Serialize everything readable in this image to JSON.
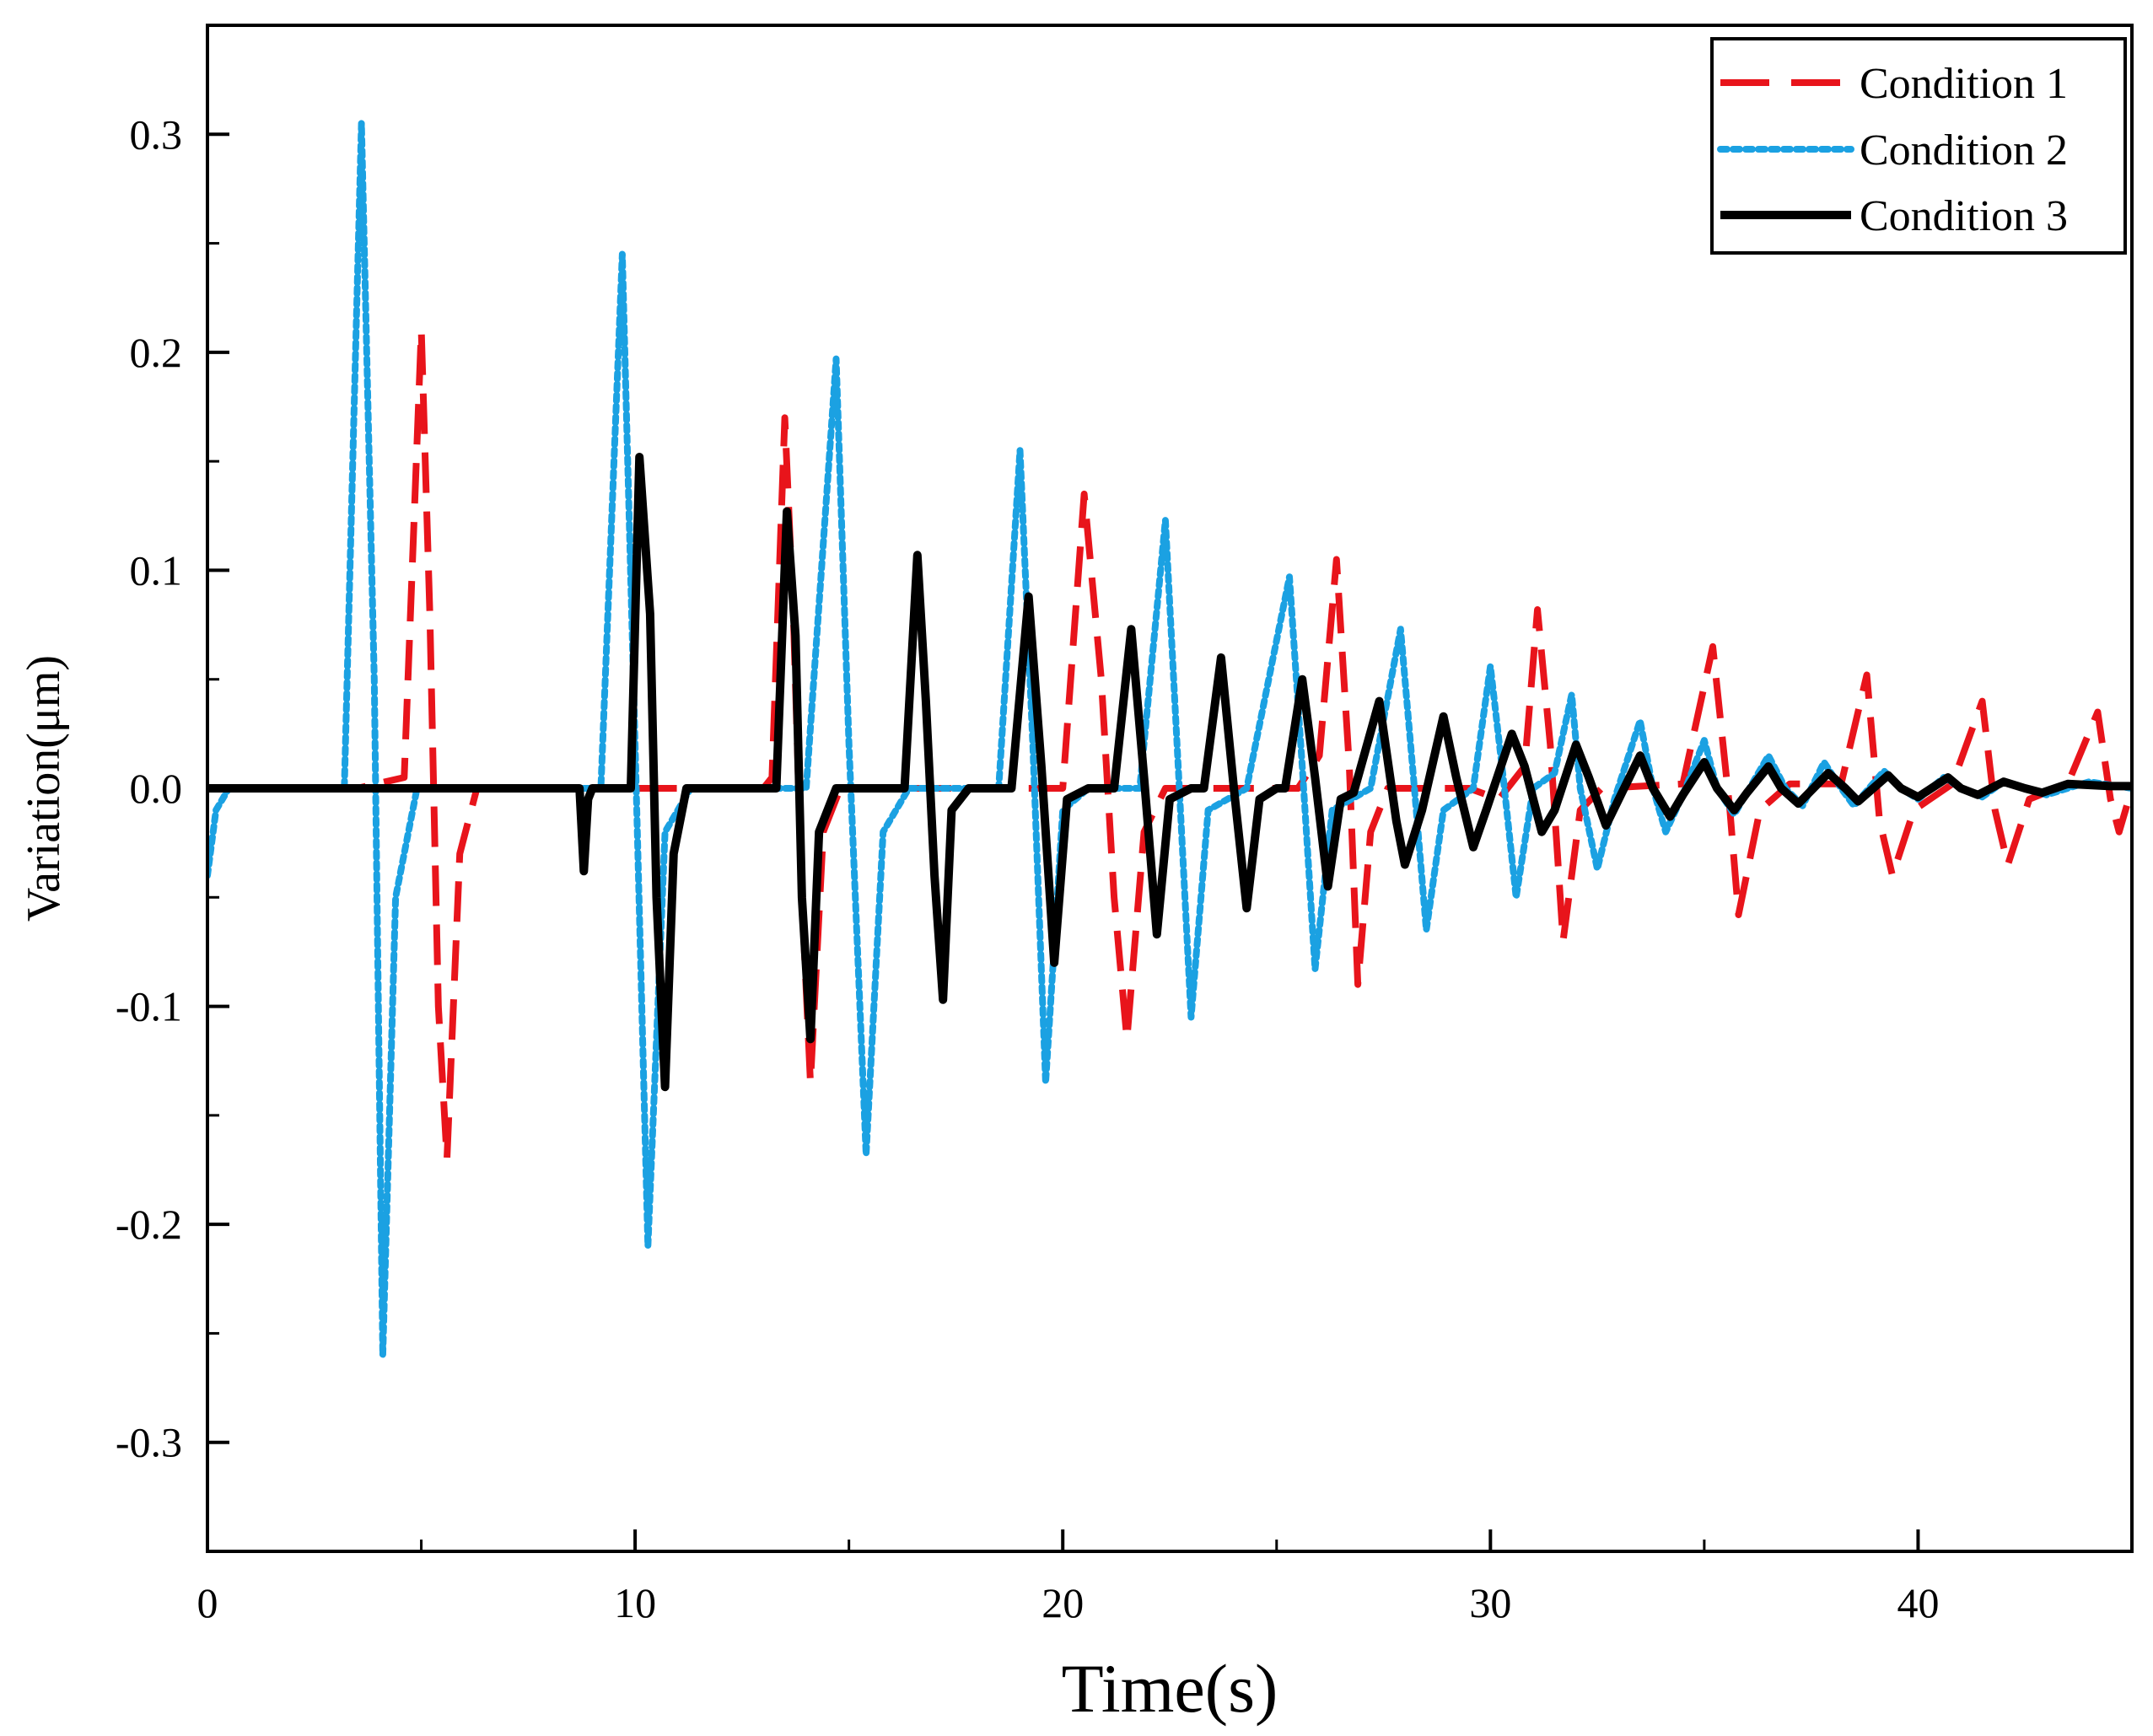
{
  "chart_data": {
    "type": "line",
    "title": "",
    "xlabel": "Time(s)",
    "ylabel": "Variation(μm)",
    "xlim": [
      0,
      45
    ],
    "ylim": [
      -0.35,
      0.35
    ],
    "x_ticks": [
      0,
      10,
      20,
      30,
      40
    ],
    "y_ticks": [
      -0.3,
      -0.2,
      -0.1,
      0.0,
      0.1,
      0.2,
      0.3
    ],
    "x_tick_labels": [
      "0",
      "10",
      "20",
      "30",
      "40"
    ],
    "y_tick_labels": [
      "-0.3",
      "-0.2",
      "-0.1",
      "0.0",
      "0.1",
      "0.2",
      "0.3"
    ],
    "legend_position": "top-right",
    "series": [
      {
        "name": "Condition 1",
        "color": "#e8141b",
        "style": "dashed",
        "points": [
          [
            0,
            0
          ],
          [
            3.5,
            0
          ],
          [
            4.6,
            0.005
          ],
          [
            5.0,
            0.21
          ],
          [
            5.2,
            0.08
          ],
          [
            5.4,
            -0.1
          ],
          [
            5.6,
            -0.17
          ],
          [
            5.9,
            -0.03
          ],
          [
            6.3,
            0
          ],
          [
            13.0,
            0
          ],
          [
            13.2,
            0.005
          ],
          [
            13.5,
            0.17
          ],
          [
            13.7,
            0.08
          ],
          [
            13.9,
            -0.05
          ],
          [
            14.1,
            -0.135
          ],
          [
            14.4,
            -0.02
          ],
          [
            14.8,
            0
          ],
          [
            20.0,
            0
          ],
          [
            20.5,
            0.135
          ],
          [
            20.9,
            0.05
          ],
          [
            21.2,
            -0.05
          ],
          [
            21.5,
            -0.115
          ],
          [
            21.9,
            -0.02
          ],
          [
            22.4,
            0
          ],
          [
            25.5,
            0
          ],
          [
            26.0,
            0.015
          ],
          [
            26.4,
            0.105
          ],
          [
            26.7,
            0.01
          ],
          [
            26.9,
            -0.09
          ],
          [
            27.2,
            -0.02
          ],
          [
            27.6,
            0
          ],
          [
            29.5,
            0
          ],
          [
            30.2,
            -0.005
          ],
          [
            30.8,
            0.01
          ],
          [
            31.1,
            0.082
          ],
          [
            31.4,
            0.02
          ],
          [
            31.7,
            -0.07
          ],
          [
            32.1,
            -0.01
          ],
          [
            32.6,
            0
          ],
          [
            34.5,
            0.002
          ],
          [
            35.2,
            0.065
          ],
          [
            35.6,
            -0.01
          ],
          [
            35.8,
            -0.058
          ],
          [
            36.3,
            -0.01
          ],
          [
            37.0,
            0.002
          ],
          [
            38.2,
            0.002
          ],
          [
            38.8,
            0.052
          ],
          [
            39.1,
            -0.015
          ],
          [
            39.4,
            -0.04
          ],
          [
            39.9,
            -0.01
          ],
          [
            40.8,
            0.002
          ],
          [
            41.5,
            0.04
          ],
          [
            41.8,
            -0.01
          ],
          [
            42.1,
            -0.035
          ],
          [
            42.6,
            -0.005
          ],
          [
            43.5,
            0.002
          ],
          [
            44.2,
            0.035
          ],
          [
            44.5,
            -0.005
          ],
          [
            44.7,
            -0.02
          ],
          [
            45,
            0
          ]
        ]
      },
      {
        "name": "Condition 2",
        "color": "#1ba1e2",
        "style": "dotted",
        "points": [
          [
            0,
            -0.04
          ],
          [
            0.2,
            -0.01
          ],
          [
            0.5,
            0
          ],
          [
            3.2,
            0
          ],
          [
            3.6,
            0.305
          ],
          [
            3.9,
            0.05
          ],
          [
            4.1,
            -0.26
          ],
          [
            4.4,
            -0.05
          ],
          [
            4.9,
            0
          ],
          [
            9.2,
            0
          ],
          [
            9.7,
            0.245
          ],
          [
            10.0,
            0.02
          ],
          [
            10.3,
            -0.21
          ],
          [
            10.7,
            -0.02
          ],
          [
            11.3,
            0
          ],
          [
            14.0,
            0
          ],
          [
            14.7,
            0.197
          ],
          [
            15.0,
            0.02
          ],
          [
            15.4,
            -0.168
          ],
          [
            15.8,
            -0.02
          ],
          [
            16.4,
            0
          ],
          [
            18.5,
            0
          ],
          [
            19.0,
            0.155
          ],
          [
            19.3,
            0.02
          ],
          [
            19.6,
            -0.135
          ],
          [
            20.0,
            -0.01
          ],
          [
            20.6,
            0
          ],
          [
            21.8,
            0
          ],
          [
            22.4,
            0.123
          ],
          [
            22.7,
            0.01
          ],
          [
            23.0,
            -0.105
          ],
          [
            23.4,
            -0.01
          ],
          [
            24.3,
            0
          ],
          [
            25.3,
            0.097
          ],
          [
            25.6,
            0.01
          ],
          [
            25.9,
            -0.083
          ],
          [
            26.3,
            -0.01
          ],
          [
            27.2,
            0
          ],
          [
            27.9,
            0.073
          ],
          [
            28.2,
            0.005
          ],
          [
            28.5,
            -0.065
          ],
          [
            28.9,
            -0.01
          ],
          [
            29.6,
            0
          ],
          [
            30.0,
            0.056
          ],
          [
            30.3,
            0.005
          ],
          [
            30.6,
            -0.05
          ],
          [
            31.0,
            0
          ],
          [
            31.5,
            0.007
          ],
          [
            31.9,
            0.043
          ],
          [
            32.1,
            0
          ],
          [
            32.5,
            -0.037
          ],
          [
            32.9,
            -0.005
          ],
          [
            33.5,
            0.031
          ],
          [
            33.8,
            0
          ],
          [
            34.1,
            -0.02
          ],
          [
            34.5,
            -0.003
          ],
          [
            35.0,
            0.022
          ],
          [
            35.3,
            0
          ],
          [
            35.7,
            -0.012
          ],
          [
            36.5,
            0.015
          ],
          [
            36.9,
            0
          ],
          [
            37.3,
            -0.008
          ],
          [
            37.8,
            0.012
          ],
          [
            38.2,
            0
          ],
          [
            38.5,
            -0.008
          ],
          [
            39.2,
            0.008
          ],
          [
            39.6,
            0
          ],
          [
            40.0,
            -0.005
          ],
          [
            40.6,
            0.005
          ],
          [
            41.0,
            0
          ],
          [
            41.5,
            -0.004
          ],
          [
            42.0,
            0.003
          ],
          [
            42.5,
            0
          ],
          [
            43.0,
            -0.003
          ],
          [
            44.0,
            0.003
          ],
          [
            45,
            0
          ]
        ]
      },
      {
        "name": "Condition 3",
        "color": "#000000",
        "style": "solid",
        "points": [
          [
            0,
            0
          ],
          [
            8.7,
            0
          ],
          [
            8.8,
            -0.038
          ],
          [
            8.9,
            -0.005
          ],
          [
            9.0,
            0
          ],
          [
            9.9,
            0
          ],
          [
            10.1,
            0.152
          ],
          [
            10.35,
            0.08
          ],
          [
            10.5,
            -0.05
          ],
          [
            10.7,
            -0.137
          ],
          [
            10.9,
            -0.03
          ],
          [
            11.2,
            0
          ],
          [
            13.3,
            0
          ],
          [
            13.55,
            0.127
          ],
          [
            13.75,
            0.07
          ],
          [
            13.9,
            -0.05
          ],
          [
            14.1,
            -0.115
          ],
          [
            14.3,
            -0.02
          ],
          [
            14.7,
            0
          ],
          [
            16.3,
            0
          ],
          [
            16.6,
            0.107
          ],
          [
            16.8,
            0.04
          ],
          [
            17.0,
            -0.04
          ],
          [
            17.2,
            -0.097
          ],
          [
            17.4,
            -0.01
          ],
          [
            17.8,
            0
          ],
          [
            18.8,
            0
          ],
          [
            19.2,
            0.088
          ],
          [
            19.5,
            0.01
          ],
          [
            19.8,
            -0.08
          ],
          [
            20.1,
            -0.005
          ],
          [
            20.6,
            0
          ],
          [
            21.2,
            0
          ],
          [
            21.6,
            0.073
          ],
          [
            21.9,
            0.005
          ],
          [
            22.2,
            -0.067
          ],
          [
            22.5,
            -0.005
          ],
          [
            23.0,
            0
          ],
          [
            23.3,
            0
          ],
          [
            23.7,
            0.06
          ],
          [
            24.0,
            0
          ],
          [
            24.3,
            -0.055
          ],
          [
            24.6,
            -0.005
          ],
          [
            25.0,
            0
          ],
          [
            25.2,
            0
          ],
          [
            25.6,
            0.05
          ],
          [
            25.9,
            0.005
          ],
          [
            26.2,
            -0.045
          ],
          [
            26.5,
            -0.005
          ],
          [
            26.8,
            -0.002
          ],
          [
            27.4,
            0.04
          ],
          [
            27.8,
            -0.015
          ],
          [
            28.0,
            -0.035
          ],
          [
            28.4,
            -0.01
          ],
          [
            28.9,
            0.033
          ],
          [
            29.2,
            0.005
          ],
          [
            29.6,
            -0.027
          ],
          [
            29.9,
            -0.01
          ],
          [
            30.5,
            0.025
          ],
          [
            30.8,
            0.01
          ],
          [
            31.2,
            -0.02
          ],
          [
            31.5,
            -0.01
          ],
          [
            32.0,
            0.02
          ],
          [
            32.3,
            0.005
          ],
          [
            32.7,
            -0.017
          ],
          [
            33.0,
            -0.005
          ],
          [
            33.5,
            0.015
          ],
          [
            33.8,
            0
          ],
          [
            34.2,
            -0.013
          ],
          [
            34.5,
            -0.003
          ],
          [
            35.0,
            0.012
          ],
          [
            35.3,
            0
          ],
          [
            35.7,
            -0.01
          ],
          [
            36.0,
            -0.002
          ],
          [
            36.5,
            0.01
          ],
          [
            36.8,
            0
          ],
          [
            37.2,
            -0.007
          ],
          [
            37.9,
            0.007
          ],
          [
            38.3,
            0
          ],
          [
            38.6,
            -0.006
          ],
          [
            39.3,
            0.006
          ],
          [
            39.6,
            0
          ],
          [
            40.0,
            -0.004
          ],
          [
            40.7,
            0.005
          ],
          [
            41.0,
            0
          ],
          [
            41.4,
            -0.003
          ],
          [
            42.0,
            0.003
          ],
          [
            42.5,
            0
          ],
          [
            42.9,
            -0.002
          ],
          [
            43.5,
            0.002
          ],
          [
            44.5,
            0.001
          ],
          [
            45,
            0.001
          ]
        ]
      }
    ]
  }
}
